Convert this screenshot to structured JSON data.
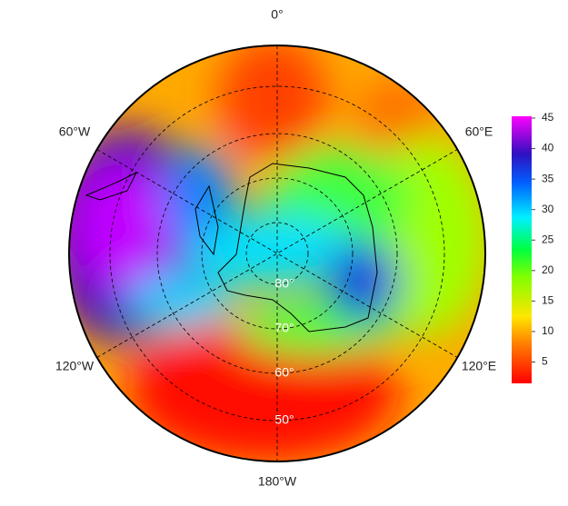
{
  "map": {
    "longitude_labels": [
      "0°",
      "60°E",
      "120°E",
      "180°W",
      "120°W",
      "60°W"
    ],
    "latitude_labels": [
      "80°",
      "70°",
      "60°",
      "50°"
    ],
    "colorbar": {
      "lim": [
        1.5,
        45.3
      ],
      "ticks": [
        5,
        10,
        15,
        20,
        25,
        30,
        35,
        40,
        45
      ]
    }
  }
}
